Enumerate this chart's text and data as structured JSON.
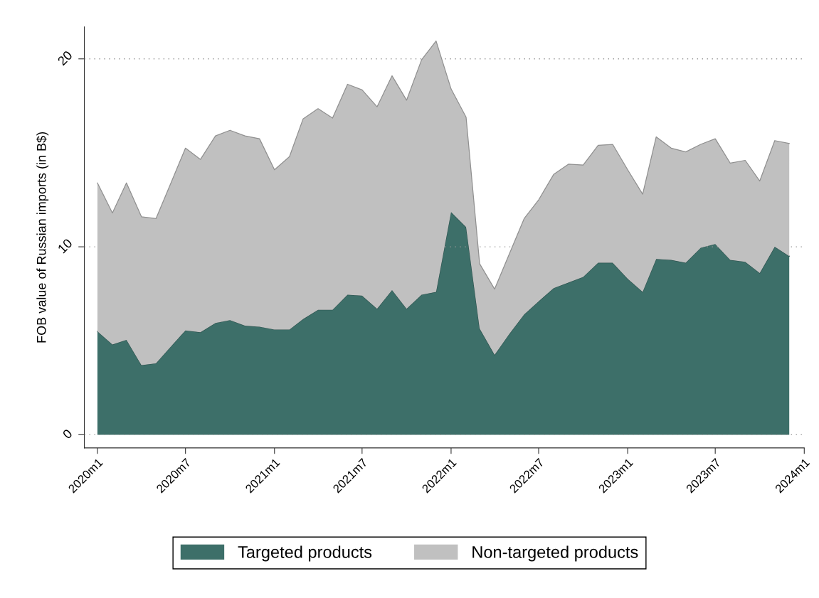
{
  "chart_data": {
    "type": "area",
    "stacked": true,
    "ylabel": "FOB value of Russian imports (in B$)",
    "x": [
      "2020-01",
      "2020-02",
      "2020-03",
      "2020-04",
      "2020-05",
      "2020-06",
      "2020-07",
      "2020-08",
      "2020-09",
      "2020-10",
      "2020-11",
      "2020-12",
      "2021-01",
      "2021-02",
      "2021-03",
      "2021-04",
      "2021-05",
      "2021-06",
      "2021-07",
      "2021-08",
      "2021-09",
      "2021-10",
      "2021-11",
      "2021-12",
      "2022-01",
      "2022-02",
      "2022-03",
      "2022-04",
      "2022-05",
      "2022-06",
      "2022-07",
      "2022-08",
      "2022-09",
      "2022-10",
      "2022-11",
      "2022-12",
      "2023-01",
      "2023-02",
      "2023-03",
      "2023-04",
      "2023-05",
      "2023-06",
      "2023-07",
      "2023-08",
      "2023-09",
      "2023-10",
      "2023-11",
      "2023-12"
    ],
    "series": [
      {
        "name": "Targeted products",
        "color": "#3d6f69",
        "values": [
          5.5,
          4.8,
          5.05,
          3.7,
          3.8,
          4.7,
          5.55,
          5.45,
          5.95,
          6.1,
          5.8,
          5.75,
          5.6,
          5.6,
          6.15,
          6.65,
          6.65,
          7.45,
          7.4,
          6.7,
          7.7,
          6.7,
          7.45,
          7.6,
          11.85,
          11.05,
          5.65,
          4.25,
          5.35,
          6.4,
          7.1,
          7.8,
          8.1,
          8.4,
          9.15,
          9.15,
          8.3,
          7.6,
          9.35,
          9.3,
          9.15,
          9.95,
          10.15,
          9.3,
          9.2,
          8.6,
          10.0,
          9.5
        ]
      },
      {
        "name": "Non-targeted products",
        "color": "#c0c0c0",
        "values": [
          7.9,
          7.0,
          8.35,
          7.9,
          7.7,
          8.7,
          9.7,
          9.2,
          9.95,
          10.1,
          10.1,
          10.0,
          8.5,
          9.2,
          10.65,
          10.7,
          10.2,
          11.2,
          10.95,
          10.75,
          11.4,
          11.1,
          12.5,
          13.35,
          6.55,
          5.85,
          3.45,
          3.5,
          4.25,
          5.1,
          5.4,
          6.05,
          6.3,
          5.95,
          6.25,
          6.3,
          5.8,
          5.2,
          6.5,
          5.95,
          5.9,
          5.5,
          5.6,
          5.15,
          5.4,
          4.9,
          5.65,
          6.0
        ]
      }
    ],
    "xlim": [
      "2019-12-05",
      "2024-01"
    ],
    "xticks": [
      {
        "value": "2020-01",
        "label": "2020m1"
      },
      {
        "value": "2020-07",
        "label": "2020m7"
      },
      {
        "value": "2021-01",
        "label": "2021m1"
      },
      {
        "value": "2021-07",
        "label": "2021m7"
      },
      {
        "value": "2022-01",
        "label": "2022m1"
      },
      {
        "value": "2022-07",
        "label": "2022m7"
      },
      {
        "value": "2023-01",
        "label": "2023m1"
      },
      {
        "value": "2023-07",
        "label": "2023m7"
      },
      {
        "value": "2024-01",
        "label": "2024m1"
      }
    ],
    "ylim": [
      -0.7,
      21.7
    ],
    "yticks": [
      0,
      10,
      20
    ],
    "grid": "y",
    "legend": "bottom"
  }
}
